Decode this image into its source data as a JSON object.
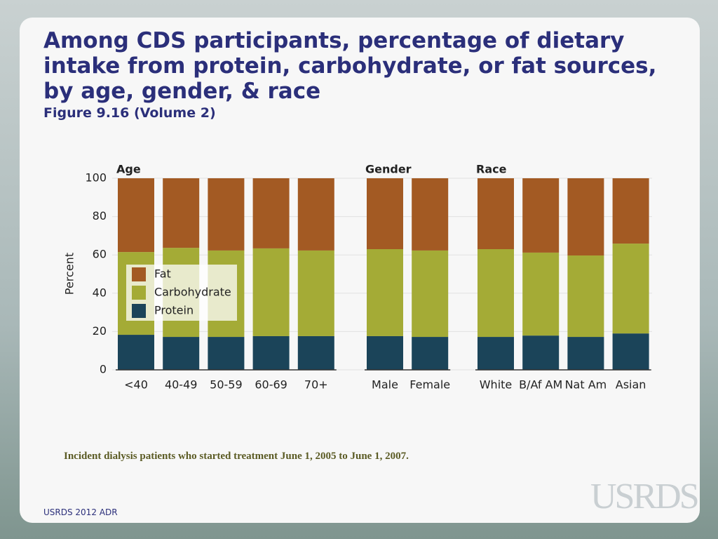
{
  "header": {
    "title": "Among CDS participants, percentage of dietary intake from protein, carbohydrate, or fat sources, by age, gender, & race",
    "subtitle": "Figure 9.16 (Volume 2)"
  },
  "chart_data": {
    "type": "bar",
    "stacked": true,
    "ylabel": "Percent",
    "ylim": [
      0,
      100
    ],
    "yticks": [
      0,
      20,
      40,
      60,
      80,
      100
    ],
    "grid": true,
    "legend": "upper left",
    "series": [
      {
        "name": "Protein",
        "color": "#1b4459"
      },
      {
        "name": "Carbohydrate",
        "color": "#a4ab36"
      },
      {
        "name": "Fat",
        "color": "#a35a23"
      }
    ],
    "panels": [
      {
        "title": "Age",
        "categories": [
          "<40",
          "40-49",
          "50-59",
          "60-69",
          "70+"
        ],
        "series": [
          {
            "values": [
              18.3,
              17.2,
              17.2,
              17.6,
              17.6
            ]
          },
          {
            "values": [
              43.2,
              46.5,
              45.1,
              45.8,
              44.7
            ]
          },
          {
            "values": [
              38.5,
              36.3,
              37.7,
              36.6,
              37.7
            ]
          }
        ]
      },
      {
        "title": "Gender",
        "categories": [
          "Male",
          "Female"
        ],
        "series": [
          {
            "values": [
              17.6,
              17.2
            ]
          },
          {
            "values": [
              45.4,
              45.1
            ]
          },
          {
            "values": [
              37.0,
              37.7
            ]
          }
        ]
      },
      {
        "title": "Race",
        "categories": [
          "White",
          "B/Af AM",
          "Nat Am",
          "Asian"
        ],
        "series": [
          {
            "values": [
              17.2,
              17.9,
              17.2,
              19.0
            ]
          },
          {
            "values": [
              45.8,
              43.3,
              42.5,
              46.9
            ]
          },
          {
            "values": [
              37.0,
              38.8,
              40.3,
              34.1
            ]
          }
        ]
      }
    ]
  },
  "note": "Incident dialysis patients who started treatment June 1, 2005 to June 1, 2007.",
  "footer": "USRDS 2012 ADR",
  "logo": "USRDS"
}
